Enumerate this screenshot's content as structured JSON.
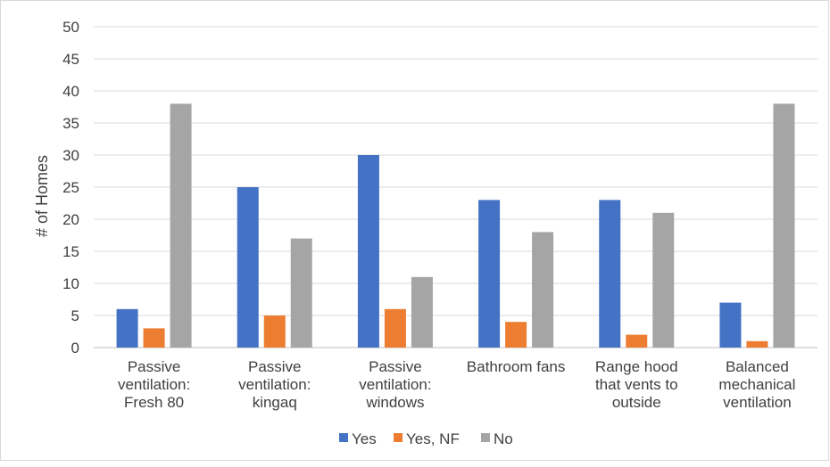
{
  "chart_data": {
    "type": "bar",
    "title": "",
    "xlabel": "",
    "ylabel": "# of Homes",
    "ylim": [
      0,
      50
    ],
    "yticks": [
      0,
      5,
      10,
      15,
      20,
      25,
      30,
      35,
      40,
      45,
      50
    ],
    "grid": true,
    "legend_position": "bottom",
    "categories": [
      [
        "Passive",
        "ventilation:",
        "Fresh 80"
      ],
      [
        "Passive",
        "ventilation:",
        "kingaq"
      ],
      [
        "Passive",
        "ventilation:",
        "windows"
      ],
      [
        "Bathroom fans"
      ],
      [
        "Range hood",
        "that vents to",
        "outside"
      ],
      [
        "Balanced",
        "mechanical",
        "ventilation"
      ]
    ],
    "series": [
      {
        "name": "Yes",
        "color": "#4472c4",
        "values": [
          6,
          25,
          30,
          23,
          23,
          7
        ]
      },
      {
        "name": "Yes, NF",
        "color": "#ed7d31",
        "values": [
          3,
          5,
          6,
          4,
          2,
          1
        ]
      },
      {
        "name": "No",
        "color": "#a5a5a5",
        "values": [
          38,
          17,
          11,
          18,
          21,
          38
        ]
      }
    ]
  }
}
